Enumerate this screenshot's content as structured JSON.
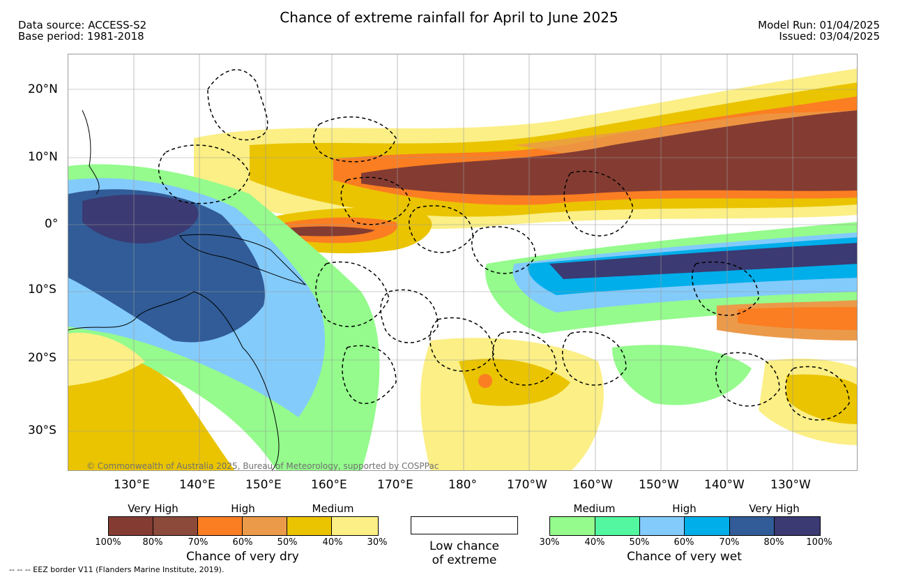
{
  "header": {
    "title": "Chance of extreme rainfall for April to June 2025",
    "data_source": "Data source: ACCESS-S2",
    "base_period": "Base period: 1981-2018",
    "model_run": "Model Run: 01/04/2025",
    "issued": "Issued: 03/04/2025"
  },
  "map": {
    "lat_labels": [
      "20°N",
      "10°N",
      "0°",
      "10°S",
      "20°S",
      "30°S"
    ],
    "lon_labels": [
      "130°E",
      "140°E",
      "150°E",
      "160°E",
      "170°E",
      "180°",
      "170°W",
      "160°W",
      "150°W",
      "140°W",
      "130°W"
    ],
    "credit": "© Commonwealth of Australia 2025, Bureau of Meteorology, supported by COSPPac"
  },
  "legend": {
    "dry": {
      "group_labels": [
        "Very High",
        "High",
        "Medium"
      ],
      "colors": [
        "#843c32",
        "#8b4a3a",
        "#fb7e22",
        "#eb9a4a",
        "#eac400",
        "#fbef86"
      ],
      "percent_labels": [
        "100%",
        "80%",
        "70%",
        "60%",
        "50%",
        "40%",
        "30%"
      ],
      "caption": "Chance of very dry"
    },
    "low": {
      "color": "#ffffff",
      "caption_line1": "Low chance",
      "caption_line2": "of extreme"
    },
    "wet": {
      "group_labels": [
        "Medium",
        "High",
        "Very High"
      ],
      "colors": [
        "#94fb8c",
        "#52f7a0",
        "#83cbfb",
        "#00aeea",
        "#315c97",
        "#3b3a72"
      ],
      "percent_labels": [
        "30%",
        "40%",
        "50%",
        "60%",
        "70%",
        "80%",
        "100%"
      ],
      "caption": "Chance of very wet"
    }
  },
  "footnote": "-- -- -- EEZ border V11 (Flanders Marine Institute, 2019)."
}
